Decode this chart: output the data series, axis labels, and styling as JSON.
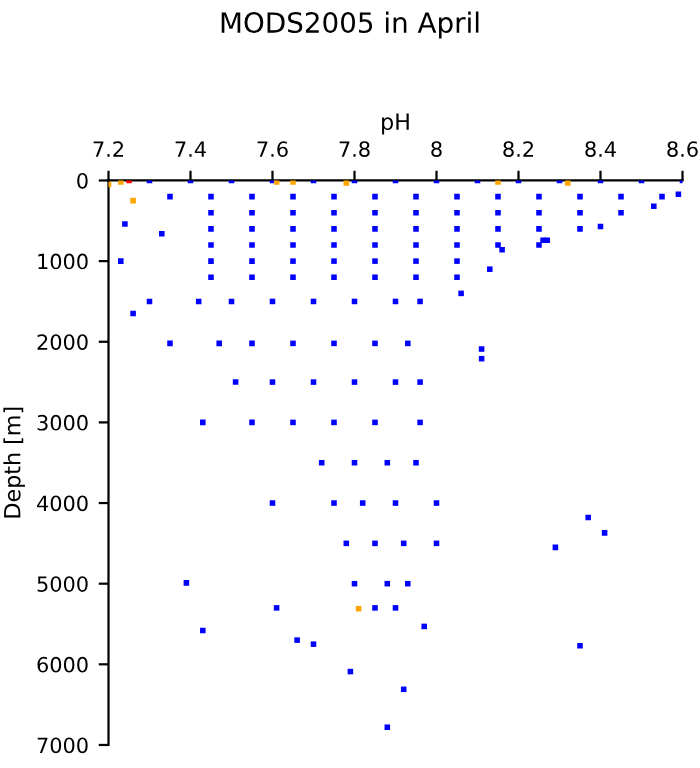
{
  "chart_data": {
    "type": "scatter",
    "title": "MODS2005 in April",
    "xlabel": "pH",
    "ylabel": "Depth [m]",
    "xlim": [
      7.2,
      8.6
    ],
    "xticks": [
      7.2,
      7.4,
      7.6,
      7.8,
      8,
      8.2,
      8.4,
      8.6
    ],
    "ylim": [
      7000,
      0
    ],
    "yticks": [
      0,
      1000,
      2000,
      3000,
      4000,
      5000,
      6000,
      7000
    ],
    "grid": false,
    "marker": "square",
    "series": [
      {
        "color": "#0000ff",
        "x": [
          7.3,
          7.4,
          7.5,
          7.6,
          7.7,
          7.8,
          7.9,
          8.0,
          8.1,
          8.2,
          8.3,
          8.4,
          8.5,
          8.6,
          7.35,
          7.45,
          7.55,
          7.65,
          7.75,
          7.85,
          7.95,
          8.05,
          8.15,
          8.25,
          8.35,
          8.45,
          8.55,
          7.45,
          7.55,
          7.65,
          7.75,
          7.85,
          7.95,
          8.05,
          8.15,
          8.25,
          8.35,
          8.45,
          7.45,
          7.55,
          7.65,
          7.75,
          7.85,
          7.95,
          8.05,
          8.15,
          8.25,
          8.35,
          7.45,
          7.55,
          7.65,
          7.75,
          7.85,
          7.95,
          8.05,
          8.15,
          8.25,
          7.45,
          7.55,
          7.65,
          7.75,
          7.85,
          7.95,
          8.05,
          7.45,
          7.55,
          7.65,
          7.75,
          7.85,
          7.95,
          8.05,
          7.42,
          7.5,
          7.6,
          7.7,
          7.8,
          7.9,
          7.96,
          7.47,
          7.55,
          7.65,
          7.75,
          7.85,
          7.93,
          7.51,
          7.6,
          7.7,
          7.8,
          7.9,
          7.96,
          7.55,
          7.65,
          7.75,
          7.85,
          7.96,
          7.72,
          7.8,
          7.88,
          7.95,
          7.6,
          7.75,
          7.82,
          7.9,
          8.0,
          7.78,
          7.85,
          7.92,
          8.0,
          7.8,
          7.88,
          7.93,
          7.61,
          7.85,
          7.9,
          7.23,
          7.26,
          7.3,
          7.35,
          7.43,
          8.11,
          8.11,
          8.16,
          8.26,
          8.06,
          8.13,
          8.59,
          8.53,
          8.4,
          8.27,
          7.24,
          7.33,
          7.39,
          7.43,
          7.66,
          7.7,
          7.79,
          7.92,
          7.88,
          7.97,
          8.35,
          8.29,
          8.37,
          8.41
        ],
        "values": [
          0,
          0,
          0,
          0,
          0,
          0,
          0,
          0,
          0,
          0,
          0,
          0,
          0,
          0,
          200,
          200,
          200,
          200,
          200,
          200,
          200,
          200,
          200,
          200,
          200,
          200,
          200,
          400,
          400,
          400,
          400,
          400,
          400,
          400,
          400,
          400,
          400,
          400,
          600,
          600,
          600,
          600,
          600,
          600,
          600,
          600,
          600,
          600,
          800,
          800,
          800,
          800,
          800,
          800,
          800,
          800,
          800,
          1000,
          1000,
          1000,
          1000,
          1000,
          1000,
          1000,
          1200,
          1200,
          1200,
          1200,
          1200,
          1200,
          1200,
          1500,
          1500,
          1500,
          1500,
          1500,
          1500,
          1500,
          2020,
          2020,
          2020,
          2020,
          2020,
          2020,
          2500,
          2500,
          2500,
          2500,
          2500,
          2500,
          3000,
          3000,
          3000,
          3000,
          3000,
          3500,
          3500,
          3500,
          3500,
          4000,
          4000,
          4000,
          4000,
          4000,
          4500,
          4500,
          4500,
          4500,
          5000,
          5000,
          5000,
          5300,
          5300,
          5300,
          1000,
          1650,
          1500,
          2020,
          3000,
          2090,
          2210,
          860,
          740,
          1400,
          1100,
          170,
          320,
          570,
          740,
          540,
          660,
          4990,
          5580,
          5700,
          5750,
          6090,
          6310,
          6780,
          5530,
          5770,
          4550,
          4180,
          4370
        ]
      },
      {
        "color": "#ffa500",
        "x": [
          7.2,
          7.23,
          7.26,
          7.61,
          7.65,
          7.78,
          8.15,
          8.32,
          7.81
        ],
        "values": [
          50,
          20,
          250,
          20,
          20,
          30,
          20,
          30,
          5310
        ]
      },
      {
        "color": "#ff0000",
        "x": [
          7.25
        ],
        "values": [
          0
        ]
      }
    ]
  }
}
